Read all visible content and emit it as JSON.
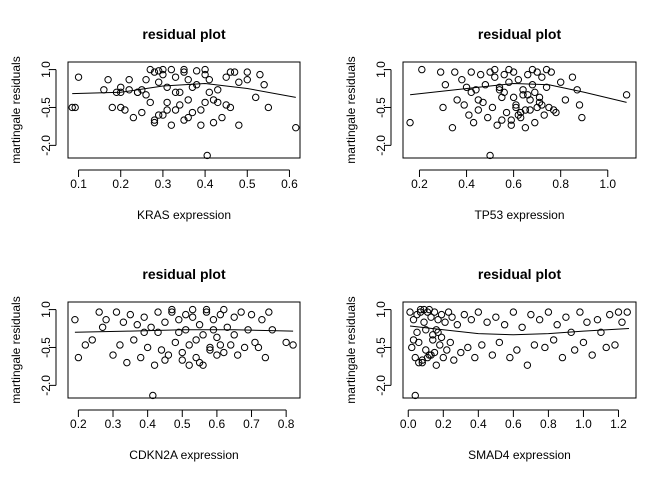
{
  "chart_data": [
    {
      "type": "scatter",
      "title": "residual plot",
      "xlabel": "KRAS expression",
      "ylabel": "martingale residuals",
      "xlim": [
        0.075,
        0.625
      ],
      "ylim": [
        -2.5,
        1.3
      ],
      "xticks": [
        "0.1",
        "0.2",
        "0.3",
        "0.4",
        "0.5",
        "0.6"
      ],
      "yticks": [
        "-2.0",
        "-0.5",
        "1.0"
      ],
      "smooth": {
        "x": [
          0.085,
          0.2,
          0.3,
          0.4,
          0.5,
          0.615
        ],
        "y": [
          0.05,
          0.1,
          0.35,
          0.45,
          0.25,
          -0.1
        ]
      },
      "points": {
        "x": [
          0.085,
          0.092,
          0.1,
          0.16,
          0.17,
          0.18,
          0.19,
          0.2,
          0.21,
          0.22,
          0.23,
          0.24,
          0.25,
          0.26,
          0.27,
          0.28,
          0.28,
          0.29,
          0.3,
          0.3,
          0.31,
          0.31,
          0.32,
          0.33,
          0.34,
          0.35,
          0.35,
          0.36,
          0.37,
          0.38,
          0.39,
          0.4,
          0.4,
          0.41,
          0.42,
          0.43,
          0.44,
          0.45,
          0.46,
          0.47,
          0.48,
          0.5,
          0.52,
          0.54,
          0.55,
          0.615,
          0.2,
          0.25,
          0.33,
          0.37,
          0.42,
          0.45,
          0.3,
          0.27,
          0.35,
          0.4,
          0.46,
          0.32,
          0.29,
          0.38,
          0.5,
          0.2,
          0.22,
          0.26,
          0.34,
          0.36,
          0.43,
          0.405,
          0.29,
          0.31,
          0.33,
          0.39,
          0.41,
          0.48,
          0.53,
          0.24,
          0.28,
          0.36
        ],
        "y": [
          -0.5,
          -0.5,
          0.7,
          0.2,
          0.6,
          -0.5,
          0.1,
          0.3,
          -0.6,
          0.6,
          -0.9,
          0.1,
          -0.7,
          0.6,
          -0.3,
          0.9,
          -1.1,
          0.5,
          -0.8,
          0.8,
          -0.6,
          0.3,
          -1.2,
          0.7,
          -0.4,
          0.9,
          -1.0,
          0.6,
          -0.7,
          0.4,
          -1.2,
          0.8,
          -0.3,
          0.6,
          -1.1,
          0.2,
          -0.9,
          0.7,
          -0.5,
          0.9,
          -1.2,
          0.6,
          -0.1,
          0.4,
          -0.5,
          -1.3,
          -0.5,
          0.2,
          -0.6,
          0.3,
          -0.2,
          -0.4,
          1.0,
          1.0,
          1.0,
          1.0,
          0.9,
          1.0,
          0.95,
          0.95,
          0.9,
          0.1,
          0.2,
          0.0,
          0.1,
          -0.2,
          -0.3,
          -2.4,
          -0.8,
          -0.3,
          0.1,
          -0.6,
          0.1,
          0.5,
          0.8,
          0.1,
          -1.0,
          -0.9
        ]
      }
    },
    {
      "type": "scatter",
      "title": "residual plot",
      "xlabel": "TP53 expression",
      "ylabel": "martingale residuals",
      "xlim": [
        0.13,
        1.12
      ],
      "ylim": [
        -2.5,
        1.3
      ],
      "xticks": [
        "0.2",
        "0.4",
        "0.6",
        "0.8",
        "1.0"
      ],
      "yticks": [
        "-2.0",
        "-0.5",
        "1.0"
      ],
      "smooth": {
        "x": [
          0.16,
          0.3,
          0.45,
          0.6,
          0.75,
          0.9,
          1.08
        ],
        "y": [
          0.0,
          0.15,
          0.3,
          0.45,
          0.4,
          0.1,
          -0.3
        ]
      },
      "points": {
        "x": [
          0.16,
          0.21,
          0.29,
          0.3,
          0.31,
          0.34,
          0.35,
          0.36,
          0.38,
          0.39,
          0.4,
          0.41,
          0.42,
          0.43,
          0.44,
          0.45,
          0.46,
          0.47,
          0.48,
          0.49,
          0.5,
          0.51,
          0.52,
          0.53,
          0.54,
          0.55,
          0.56,
          0.57,
          0.58,
          0.59,
          0.6,
          0.61,
          0.62,
          0.63,
          0.64,
          0.65,
          0.66,
          0.67,
          0.68,
          0.69,
          0.7,
          0.71,
          0.72,
          0.73,
          0.74,
          0.75,
          0.76,
          0.78,
          0.8,
          0.82,
          0.85,
          0.87,
          0.88,
          0.89,
          1.08,
          0.5,
          0.55,
          0.62,
          0.65,
          0.7,
          0.45,
          0.6,
          0.66,
          0.72,
          0.52,
          0.58,
          0.68,
          0.74,
          0.42,
          0.56,
          0.64,
          0.63,
          0.67,
          0.59,
          0.69,
          0.71,
          0.61,
          0.54,
          0.77
        ],
        "y": [
          -1.1,
          1.0,
          0.9,
          -0.5,
          0.4,
          -1.3,
          0.9,
          -0.2,
          0.6,
          -0.4,
          0.3,
          -0.8,
          0.9,
          -1.1,
          0.2,
          -0.6,
          0.8,
          -0.3,
          0.4,
          -0.9,
          0.9,
          -0.5,
          0.7,
          -1.2,
          0.3,
          -0.1,
          0.8,
          -0.7,
          0.5,
          -1.0,
          0.9,
          -0.4,
          0.6,
          -0.9,
          0.2,
          -1.3,
          0.8,
          -0.6,
          0.4,
          -1.1,
          0.9,
          -0.3,
          0.7,
          -0.8,
          0.3,
          -0.5,
          0.9,
          -0.7,
          0.5,
          -0.2,
          0.7,
          0.2,
          -0.4,
          -0.9,
          0.0,
          -2.4,
          -1.0,
          -0.8,
          -0.6,
          -0.5,
          -0.2,
          -0.1,
          0.0,
          -0.4,
          1.0,
          1.0,
          1.0,
          1.0,
          0.1,
          0.1,
          0.0,
          -0.7,
          -0.2,
          -1.2,
          0.1,
          -0.1,
          -0.5,
          0.2,
          -0.6
        ]
      }
    },
    {
      "type": "scatter",
      "title": "residual plot",
      "xlabel": "CDKN2A expression",
      "ylabel": "martingale residuals",
      "xlim": [
        0.17,
        0.84
      ],
      "ylim": [
        -2.5,
        1.3
      ],
      "xticks": [
        "0.2",
        "0.3",
        "0.4",
        "0.5",
        "0.6",
        "0.7",
        "0.8"
      ],
      "yticks": [
        "-2.0",
        "-0.5",
        "1.0"
      ],
      "smooth": {
        "x": [
          0.19,
          0.35,
          0.5,
          0.65,
          0.82
        ],
        "y": [
          0.1,
          0.15,
          0.2,
          0.2,
          0.15
        ]
      },
      "points": {
        "x": [
          0.19,
          0.2,
          0.22,
          0.24,
          0.26,
          0.27,
          0.28,
          0.3,
          0.31,
          0.32,
          0.33,
          0.34,
          0.35,
          0.36,
          0.37,
          0.38,
          0.39,
          0.4,
          0.41,
          0.42,
          0.43,
          0.44,
          0.45,
          0.46,
          0.47,
          0.48,
          0.49,
          0.5,
          0.51,
          0.52,
          0.53,
          0.54,
          0.55,
          0.56,
          0.57,
          0.58,
          0.59,
          0.6,
          0.61,
          0.62,
          0.63,
          0.64,
          0.65,
          0.66,
          0.67,
          0.68,
          0.69,
          0.7,
          0.71,
          0.72,
          0.73,
          0.74,
          0.75,
          0.76,
          0.8,
          0.82,
          0.415,
          0.45,
          0.5,
          0.52,
          0.55,
          0.58,
          0.6,
          0.47,
          0.53,
          0.57,
          0.62,
          0.49,
          0.43,
          0.56,
          0.59,
          0.54,
          0.61,
          0.51,
          0.65,
          0.39
        ],
        "y": [
          0.6,
          -0.9,
          -0.4,
          -0.2,
          0.9,
          0.3,
          0.6,
          -0.8,
          0.9,
          -0.4,
          0.5,
          -1.1,
          0.8,
          -0.2,
          0.4,
          -0.9,
          0.7,
          -0.5,
          0.3,
          -1.2,
          0.9,
          -0.6,
          0.5,
          -0.8,
          0.9,
          -0.3,
          0.6,
          -1.0,
          0.8,
          -0.4,
          0.7,
          -0.9,
          0.4,
          -1.2,
          0.9,
          -0.5,
          0.6,
          -0.1,
          0.8,
          -0.7,
          0.3,
          -0.4,
          0.7,
          -0.8,
          0.9,
          -0.5,
          0.2,
          0.8,
          -0.3,
          -0.5,
          0.6,
          -0.9,
          0.9,
          0.2,
          -0.3,
          -0.4,
          -2.4,
          -1.0,
          -0.7,
          -1.2,
          -1.1,
          -0.6,
          -0.8,
          1.0,
          1.0,
          1.0,
          1.0,
          0.1,
          0.1,
          0.0,
          0.2,
          -0.2,
          -0.4,
          0.2,
          0.0,
          0.1
        ]
      }
    },
    {
      "type": "scatter",
      "title": "residual plot",
      "xlabel": "SMAD4 expression",
      "ylabel": "martingale residuals",
      "xlim": [
        -0.03,
        1.3
      ],
      "ylim": [
        -2.5,
        1.3
      ],
      "xticks": [
        "0.0",
        "0.2",
        "0.4",
        "0.6",
        "0.8",
        "1.0",
        "1.2"
      ],
      "yticks": [
        "-2.0",
        "-0.5",
        "1.0"
      ],
      "smooth": {
        "x": [
          0.01,
          0.2,
          0.4,
          0.6,
          0.8,
          1.0,
          1.26
        ],
        "y": [
          0.35,
          0.2,
          0.05,
          0.0,
          0.05,
          0.15,
          0.25
        ]
      },
      "points": {
        "x": [
          0.01,
          0.02,
          0.03,
          0.04,
          0.05,
          0.06,
          0.07,
          0.08,
          0.09,
          0.1,
          0.11,
          0.12,
          0.13,
          0.14,
          0.15,
          0.16,
          0.17,
          0.18,
          0.19,
          0.2,
          0.21,
          0.22,
          0.23,
          0.24,
          0.25,
          0.26,
          0.28,
          0.3,
          0.32,
          0.34,
          0.36,
          0.38,
          0.4,
          0.42,
          0.45,
          0.48,
          0.5,
          0.52,
          0.55,
          0.58,
          0.6,
          0.62,
          0.65,
          0.68,
          0.7,
          0.72,
          0.75,
          0.78,
          0.8,
          0.83,
          0.85,
          0.88,
          0.9,
          0.93,
          0.95,
          0.98,
          1.0,
          1.02,
          1.05,
          1.08,
          1.1,
          1.13,
          1.15,
          1.18,
          1.2,
          1.22,
          1.25,
          0.04,
          0.06,
          0.08,
          0.11,
          0.13,
          0.15,
          0.07,
          0.09,
          0.12,
          0.05,
          0.1,
          0.14,
          0.17,
          0.19,
          0.03,
          0.16
        ],
        "y": [
          0.9,
          -0.5,
          0.6,
          -0.9,
          0.8,
          -0.3,
          0.9,
          -1.1,
          0.5,
          -0.6,
          0.9,
          -0.8,
          0.7,
          -0.2,
          0.9,
          -1.2,
          0.6,
          -0.4,
          0.8,
          -0.9,
          0.5,
          -0.6,
          0.9,
          -0.3,
          0.7,
          -1.0,
          0.4,
          -0.7,
          0.8,
          -0.5,
          0.6,
          -0.9,
          0.9,
          -0.4,
          0.5,
          -0.8,
          0.7,
          -0.3,
          0.4,
          -0.9,
          0.9,
          -0.6,
          0.3,
          -1.2,
          0.8,
          -0.4,
          0.6,
          -0.5,
          0.9,
          -0.2,
          0.4,
          -0.9,
          0.7,
          0.1,
          -0.6,
          0.9,
          -0.3,
          0.5,
          -0.8,
          0.6,
          0.1,
          -0.5,
          0.8,
          -0.4,
          0.9,
          0.5,
          0.9,
          -2.4,
          -1.1,
          -1.0,
          -0.9,
          -0.8,
          -0.7,
          1.0,
          1.0,
          1.0,
          0.1,
          0.2,
          0.0,
          0.1,
          -0.1,
          -0.2,
          0.2
        ]
      }
    }
  ]
}
